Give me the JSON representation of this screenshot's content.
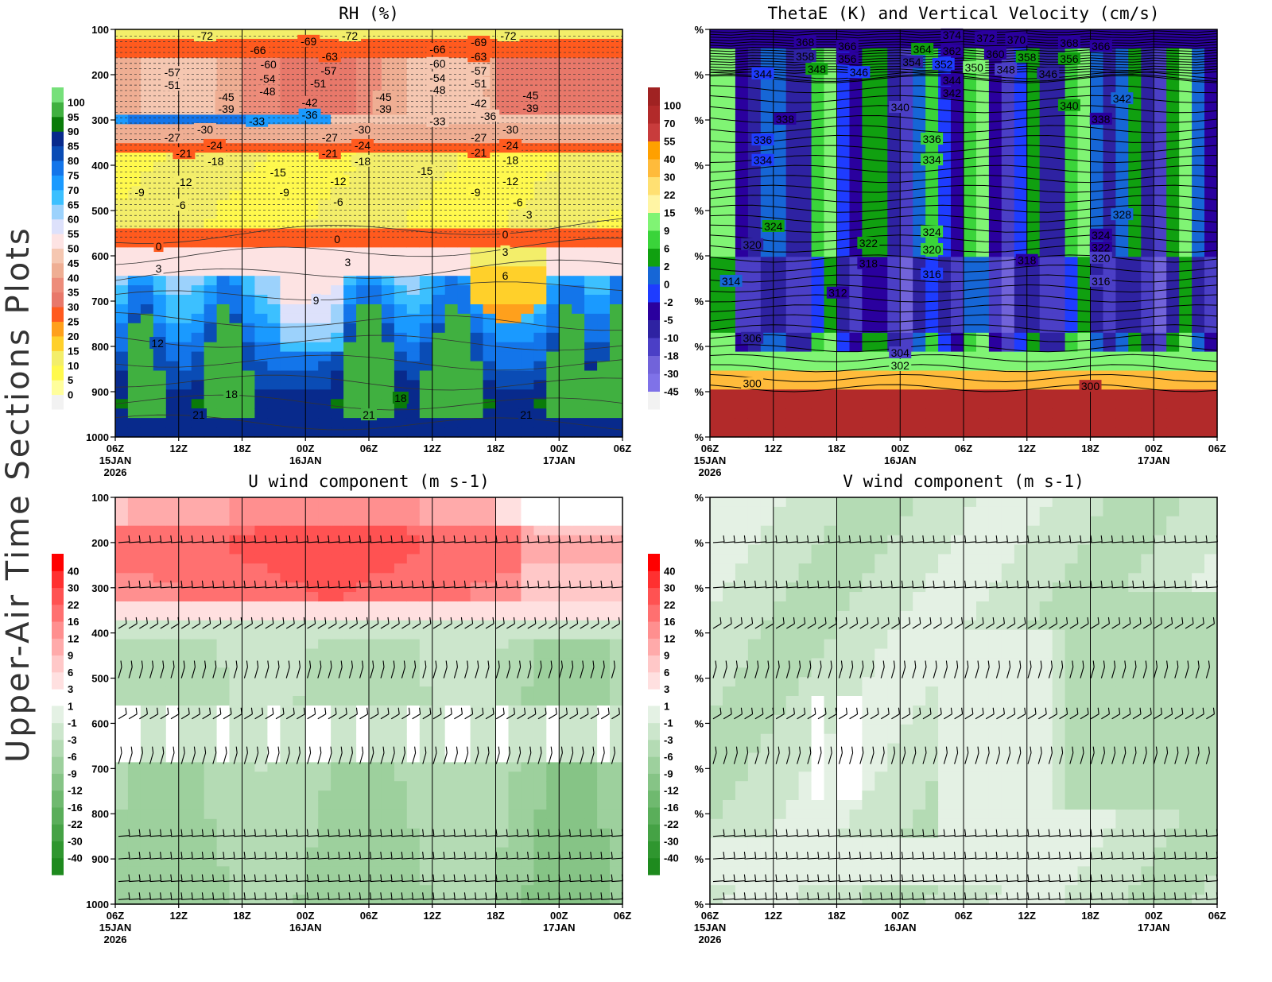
{
  "side_title": "Upper-Air Time Sections Plots",
  "time_ticks": [
    "06Z",
    "12Z",
    "18Z",
    "00Z",
    "06Z",
    "12Z",
    "18Z",
    "00Z",
    "06Z"
  ],
  "date_labels": [
    {
      "tick_index": 0,
      "lines": [
        "15JAN",
        "2026"
      ]
    },
    {
      "tick_index": 3,
      "lines": [
        "16JAN"
      ]
    },
    {
      "tick_index": 7,
      "lines": [
        "17JAN"
      ]
    }
  ],
  "chart_data": [
    {
      "type": "heatmap",
      "title": "RH (%)",
      "x_unit": "hours from 15JAN2026 06Z",
      "xlim": [
        0,
        48
      ],
      "ylim_hPa": [
        100,
        1000
      ],
      "y_reversed": true,
      "y_tick_labels": [
        "100",
        "200",
        "300",
        "400",
        "500",
        "600",
        "700",
        "800",
        "900",
        "1000"
      ],
      "colorbar": {
        "labels": [
          "0",
          "5",
          "10",
          "15",
          "20",
          "25",
          "30",
          "35",
          "40",
          "45",
          "50",
          "55",
          "60",
          "65",
          "70",
          "75",
          "80",
          "85",
          "90",
          "95",
          "100"
        ],
        "colors": [
          "#f2f2f2",
          "#fffe9c",
          "#fff94d",
          "#f3ee6a",
          "#ffd02a",
          "#ffa01c",
          "#ff5a1e",
          "#e8786a",
          "#ed8c7a",
          "#efae93",
          "#f5c7b1",
          "#fde3e3",
          "#dde1fb",
          "#9cd2fc",
          "#3cc0ff",
          "#1a9aff",
          "#1375ea",
          "#0a4cb5",
          "#082a8c",
          "#0a7b0a",
          "#40b040",
          "#76e07a"
        ]
      },
      "contour_field": "temperature (C)",
      "contour_labels": [
        {
          "t": 8.5,
          "p": 114,
          "v": "-72"
        },
        {
          "t": 13.5,
          "p": 146,
          "v": "-66"
        },
        {
          "t": 14.5,
          "p": 177,
          "v": "-60"
        },
        {
          "t": 14.4,
          "p": 209,
          "v": "-54"
        },
        {
          "t": 14.4,
          "p": 237,
          "v": "-48"
        },
        {
          "t": 18.3,
          "p": 126,
          "v": "-69"
        },
        {
          "t": 22.2,
          "p": 114,
          "v": "-72"
        },
        {
          "t": 20.3,
          "p": 160,
          "v": "-63"
        },
        {
          "t": 20.2,
          "p": 191,
          "v": "-57"
        },
        {
          "t": 19.2,
          "p": 219,
          "v": "-51"
        },
        {
          "t": 18.4,
          "p": 261,
          "v": "-42"
        },
        {
          "t": 18.4,
          "p": 289,
          "v": "-36"
        },
        {
          "t": 25.4,
          "p": 249,
          "v": "-45"
        },
        {
          "t": 25.4,
          "p": 275,
          "v": "-39"
        },
        {
          "t": 30.5,
          "p": 144,
          "v": "-66"
        },
        {
          "t": 30.5,
          "p": 175,
          "v": "-60"
        },
        {
          "t": 30.5,
          "p": 207,
          "v": "-54"
        },
        {
          "t": 30.5,
          "p": 233,
          "v": "-48"
        },
        {
          "t": 30.5,
          "p": 303,
          "v": "-33"
        },
        {
          "t": 34.4,
          "p": 128,
          "v": "-69"
        },
        {
          "t": 34.4,
          "p": 160,
          "v": "-63"
        },
        {
          "t": 34.4,
          "p": 191,
          "v": "-57"
        },
        {
          "t": 34.4,
          "p": 219,
          "v": "-51"
        },
        {
          "t": 34.4,
          "p": 263,
          "v": "-42"
        },
        {
          "t": 35.3,
          "p": 291,
          "v": "-36"
        },
        {
          "t": 37.2,
          "p": 114,
          "v": "-72"
        },
        {
          "t": 39.3,
          "p": 246,
          "v": "-45"
        },
        {
          "t": 39.3,
          "p": 274,
          "v": "-39"
        },
        {
          "t": 37.4,
          "p": 321,
          "v": "-30"
        },
        {
          "t": 37.4,
          "p": 356,
          "v": "-24"
        },
        {
          "t": 37.4,
          "p": 389,
          "v": "-18"
        },
        {
          "t": 37.4,
          "p": 435,
          "v": "-12"
        },
        {
          "t": 38.1,
          "p": 482,
          "v": "-6"
        },
        {
          "t": 39.0,
          "p": 509,
          "v": "-3"
        },
        {
          "t": 36.9,
          "p": 553,
          "v": "0"
        },
        {
          "t": 36.9,
          "p": 591,
          "v": "3"
        },
        {
          "t": 36.9,
          "p": 644,
          "v": "6"
        },
        {
          "t": 34.4,
          "p": 339,
          "v": "-27"
        },
        {
          "t": 34.4,
          "p": 372,
          "v": "-21"
        },
        {
          "t": 34.1,
          "p": 460,
          "v": "-9"
        },
        {
          "t": 29.3,
          "p": 412,
          "v": "-15"
        },
        {
          "t": 5.4,
          "p": 195,
          "v": "-57"
        },
        {
          "t": 5.4,
          "p": 223,
          "v": "-51"
        },
        {
          "t": 10.5,
          "p": 249,
          "v": "-45"
        },
        {
          "t": 10.5,
          "p": 275,
          "v": "-39"
        },
        {
          "t": 13.4,
          "p": 303,
          "v": "-33"
        },
        {
          "t": 8.5,
          "p": 321,
          "v": "-30"
        },
        {
          "t": 5.4,
          "p": 339,
          "v": "-27"
        },
        {
          "t": 6.5,
          "p": 374,
          "v": "-21"
        },
        {
          "t": 9.4,
          "p": 356,
          "v": "-24"
        },
        {
          "t": 9.5,
          "p": 391,
          "v": "-18"
        },
        {
          "t": 15.4,
          "p": 416,
          "v": "-15"
        },
        {
          "t": 6.5,
          "p": 437,
          "v": "-12"
        },
        {
          "t": 2.3,
          "p": 460,
          "v": "-9"
        },
        {
          "t": 6.2,
          "p": 488,
          "v": "-6"
        },
        {
          "t": 23.4,
          "p": 321,
          "v": "-30"
        },
        {
          "t": 20.3,
          "p": 339,
          "v": "-27"
        },
        {
          "t": 23.4,
          "p": 356,
          "v": "-24"
        },
        {
          "t": 20.3,
          "p": 374,
          "v": "-21"
        },
        {
          "t": 23.4,
          "p": 391,
          "v": "-18"
        },
        {
          "t": 21.1,
          "p": 435,
          "v": "-12"
        },
        {
          "t": 16.0,
          "p": 460,
          "v": "-9"
        },
        {
          "t": 21.1,
          "p": 481,
          "v": "-6"
        },
        {
          "t": 4.1,
          "p": 579,
          "v": "0"
        },
        {
          "t": 21.0,
          "p": 563,
          "v": "0"
        },
        {
          "t": 4.1,
          "p": 628,
          "v": "3"
        },
        {
          "t": 22.0,
          "p": 614,
          "v": "3"
        },
        {
          "t": 19.0,
          "p": 698,
          "v": "9"
        },
        {
          "t": 4.0,
          "p": 793,
          "v": "12"
        },
        {
          "t": 11.0,
          "p": 905,
          "v": "18"
        },
        {
          "t": 7.9,
          "p": 951,
          "v": "21"
        },
        {
          "t": 24.0,
          "p": 951,
          "v": "21"
        },
        {
          "t": 27.0,
          "p": 914,
          "v": "18"
        },
        {
          "t": 38.9,
          "p": 951,
          "v": "21"
        }
      ]
    },
    {
      "type": "heatmap",
      "title": "ThetaE (K) and Vertical Velocity (cm/s)",
      "x_unit": "hours from 15JAN2026 06Z",
      "xlim": [
        0,
        48
      ],
      "ylim_hPa": [
        100,
        1000
      ],
      "y_reversed": true,
      "y_tick_labels": [
        "%",
        "%",
        "%",
        "%",
        "%",
        "%",
        "%",
        "%",
        "%",
        "%"
      ],
      "colorbar": {
        "labels": [
          "-45",
          "-30",
          "-18",
          "-10",
          "-5",
          "-2",
          "0",
          "2",
          "6",
          "9",
          "15",
          "22",
          "30",
          "40",
          "55",
          "70",
          "100"
        ],
        "colors": [
          "#f2f2f2",
          "#7f72e8",
          "#7163da",
          "#4b3fc6",
          "#2e22a2",
          "#2a009e",
          "#1e3cff",
          "#1666d6",
          "#10a010",
          "#3ad43a",
          "#80f474",
          "#fff5a4",
          "#ffe072",
          "#ffbb3b",
          "#ffa000",
          "#c83c3c",
          "#b22a2a",
          "#a02222"
        ]
      },
      "contour_field": "ThetaE (K)",
      "contour_labels": [
        {
          "t": 9.0,
          "p": 128,
          "v": "368"
        },
        {
          "t": 9.0,
          "p": 160,
          "v": "358"
        },
        {
          "t": 13.0,
          "p": 137,
          "v": "366"
        },
        {
          "t": 13.0,
          "p": 165,
          "v": "356"
        },
        {
          "t": 10.1,
          "p": 188,
          "v": "348"
        },
        {
          "t": 14.1,
          "p": 195,
          "v": "346"
        },
        {
          "t": 5.0,
          "p": 198,
          "v": "344"
        },
        {
          "t": 22.9,
          "p": 112,
          "v": "374"
        },
        {
          "t": 26.1,
          "p": 119,
          "v": "372"
        },
        {
          "t": 29.0,
          "p": 123,
          "v": "370"
        },
        {
          "t": 20.1,
          "p": 144,
          "v": "364"
        },
        {
          "t": 22.9,
          "p": 147,
          "v": "362"
        },
        {
          "t": 27.0,
          "p": 154,
          "v": "360"
        },
        {
          "t": 19.1,
          "p": 172,
          "v": "354"
        },
        {
          "t": 22.1,
          "p": 177,
          "v": "352"
        },
        {
          "t": 25.0,
          "p": 184,
          "v": "350"
        },
        {
          "t": 30.0,
          "p": 161,
          "v": "358"
        },
        {
          "t": 28.0,
          "p": 189,
          "v": "348"
        },
        {
          "t": 32.0,
          "p": 198,
          "v": "346"
        },
        {
          "t": 34.0,
          "p": 130,
          "v": "368"
        },
        {
          "t": 37.0,
          "p": 137,
          "v": "366"
        },
        {
          "t": 34.0,
          "p": 165,
          "v": "356"
        },
        {
          "t": 22.9,
          "p": 212,
          "v": "344"
        },
        {
          "t": 22.9,
          "p": 240,
          "v": "342"
        },
        {
          "t": 39.0,
          "p": 253,
          "v": "342"
        },
        {
          "t": 18.0,
          "p": 272,
          "v": "340"
        },
        {
          "t": 34.0,
          "p": 268,
          "v": "340"
        },
        {
          "t": 7.1,
          "p": 298,
          "v": "338"
        },
        {
          "t": 37.0,
          "p": 298,
          "v": "338"
        },
        {
          "t": 5.0,
          "p": 344,
          "v": "336"
        },
        {
          "t": 21.0,
          "p": 342,
          "v": "336"
        },
        {
          "t": 5.0,
          "p": 389,
          "v": "334"
        },
        {
          "t": 21.0,
          "p": 388,
          "v": "334"
        },
        {
          "t": 39.0,
          "p": 509,
          "v": "328"
        },
        {
          "t": 6.0,
          "p": 535,
          "v": "324"
        },
        {
          "t": 21.0,
          "p": 547,
          "v": "324"
        },
        {
          "t": 37.0,
          "p": 554,
          "v": "324"
        },
        {
          "t": 15.0,
          "p": 572,
          "v": "322"
        },
        {
          "t": 37.0,
          "p": 582,
          "v": "322"
        },
        {
          "t": 4.0,
          "p": 575,
          "v": "320"
        },
        {
          "t": 21.0,
          "p": 586,
          "v": "320"
        },
        {
          "t": 37.0,
          "p": 605,
          "v": "320"
        },
        {
          "t": 15.0,
          "p": 617,
          "v": "318"
        },
        {
          "t": 30.0,
          "p": 610,
          "v": "318"
        },
        {
          "t": 21.0,
          "p": 640,
          "v": "316"
        },
        {
          "t": 37.0,
          "p": 656,
          "v": "316"
        },
        {
          "t": 2.0,
          "p": 656,
          "v": "314"
        },
        {
          "t": 12.1,
          "p": 682,
          "v": "312"
        },
        {
          "t": 4.0,
          "p": 782,
          "v": "306"
        },
        {
          "t": 18.0,
          "p": 814,
          "v": "304"
        },
        {
          "t": 18.0,
          "p": 842,
          "v": "302"
        },
        {
          "t": 4.0,
          "p": 882,
          "v": "300"
        },
        {
          "t": 36.0,
          "p": 888,
          "v": "300"
        }
      ]
    },
    {
      "type": "heatmap",
      "title": "U wind component (m s-1)",
      "x_unit": "hours from 15JAN2026 06Z",
      "xlim": [
        0,
        48
      ],
      "ylim_hPa": [
        100,
        1000
      ],
      "y_reversed": true,
      "y_tick_labels": [
        "100",
        "200",
        "300",
        "400",
        "500",
        "600",
        "700",
        "800",
        "900",
        "1000"
      ],
      "wind_barb_levels_hPa": [
        200,
        300,
        390,
        500,
        590,
        690,
        850,
        900,
        950,
        990
      ],
      "colorbar": {
        "labels": [
          "-40",
          "-30",
          "-22",
          "-16",
          "-12",
          "-9",
          "-6",
          "-3",
          "-1",
          "1",
          "3",
          "6",
          "9",
          "12",
          "16",
          "22",
          "30",
          "40"
        ],
        "colors": [
          "#1e8a1e",
          "#2f962f",
          "#45a245",
          "#5aae5a",
          "#6fb96f",
          "#86c486",
          "#9dd09d",
          "#b4dbb4",
          "#cce6cc",
          "#e4f1e4",
          "#ffffff",
          "#ffe0e0",
          "#ffc8c8",
          "#ffaaaa",
          "#ff8f8f",
          "#ff7070",
          "#ff5252",
          "#ff3030",
          "#ff0000"
        ]
      }
    },
    {
      "type": "heatmap",
      "title": "V wind component (m s-1)",
      "x_unit": "hours from 15JAN2026 06Z",
      "xlim": [
        0,
        48
      ],
      "ylim_hPa": [
        100,
        1000
      ],
      "y_reversed": true,
      "y_tick_labels": [
        "%",
        "%",
        "%",
        "%",
        "%",
        "%",
        "%",
        "%",
        "%",
        "%"
      ],
      "wind_barb_levels_hPa": [
        200,
        300,
        390,
        500,
        590,
        690,
        850,
        900,
        950,
        990
      ],
      "colorbar": {
        "labels": [
          "-40",
          "-30",
          "-22",
          "-16",
          "-12",
          "-9",
          "-6",
          "-3",
          "-1",
          "1",
          "3",
          "6",
          "9",
          "12",
          "16",
          "22",
          "30",
          "40"
        ],
        "colors": [
          "#1e8a1e",
          "#2f962f",
          "#45a245",
          "#5aae5a",
          "#6fb96f",
          "#86c486",
          "#9dd09d",
          "#b4dbb4",
          "#cce6cc",
          "#e4f1e4",
          "#ffffff",
          "#ffe0e0",
          "#ffc8c8",
          "#ffaaaa",
          "#ff8f8f",
          "#ff7070",
          "#ff5252",
          "#ff3030",
          "#ff0000"
        ]
      }
    }
  ]
}
